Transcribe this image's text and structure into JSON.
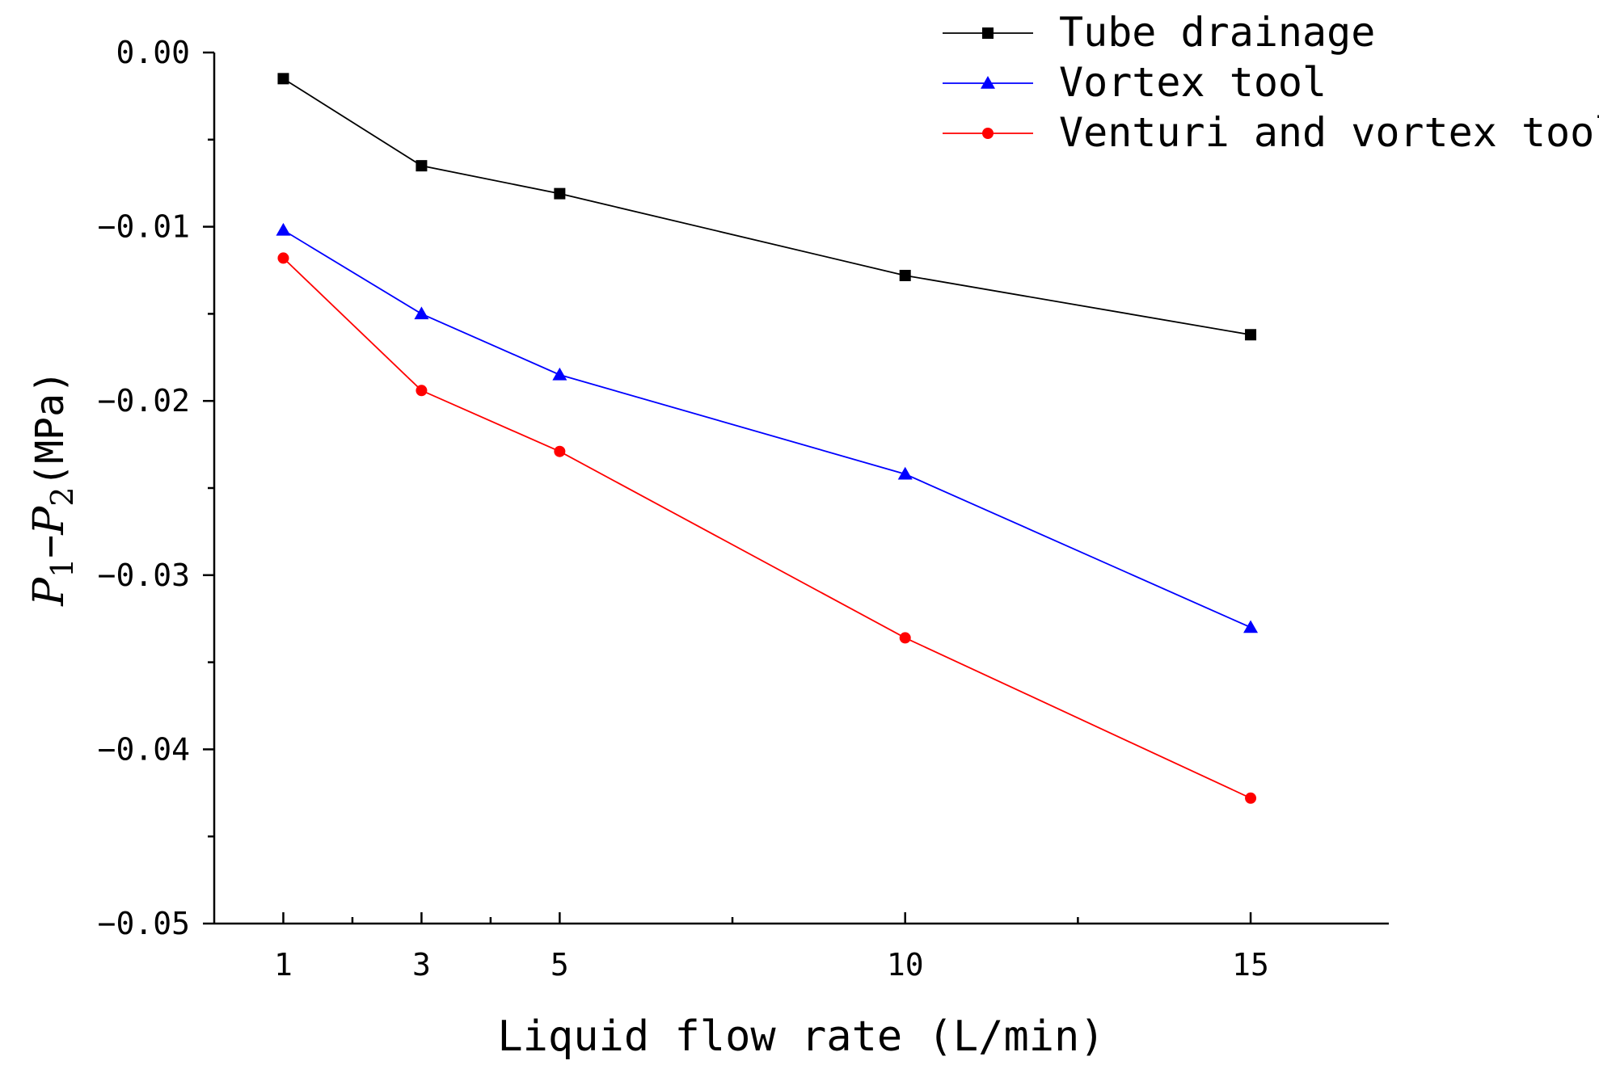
{
  "chart_data": {
    "type": "line",
    "title": "",
    "xlabel": "Liquid flow rate (L/min)",
    "ylabel": {
      "p1": "P",
      "sub1": "1",
      "minus": "−",
      "p2": "P",
      "sub2": "2",
      "unit": "(MPa)"
    },
    "xlim": [
      0,
      17
    ],
    "ylim": [
      -0.05,
      0.0
    ],
    "x_ticks": [
      1,
      3,
      5,
      10,
      15
    ],
    "x_tick_labels": [
      "1",
      "3",
      "5",
      "10",
      "15"
    ],
    "x_minor_ticks": [
      2,
      4,
      7.5,
      12.5
    ],
    "y_ticks": [
      0.0,
      -0.01,
      -0.02,
      -0.03,
      -0.04,
      -0.05
    ],
    "y_tick_labels": [
      "0.00",
      "−0.01",
      "−0.02",
      "−0.03",
      "−0.04",
      "−0.05"
    ],
    "y_minor_ticks": [
      -0.005,
      -0.015,
      -0.025,
      -0.035,
      -0.045
    ],
    "grid": false,
    "legend_position": "top-right",
    "x": [
      1,
      3,
      5,
      10,
      15
    ],
    "series": [
      {
        "name": "Tube drainage",
        "color": "#000000",
        "marker": "square",
        "values": [
          -0.0015,
          -0.0065,
          -0.0081,
          -0.0128,
          -0.0162
        ]
      },
      {
        "name": "Vortex tool",
        "color": "#0000ff",
        "marker": "triangle",
        "values": [
          -0.0102,
          -0.015,
          -0.0185,
          -0.0242,
          -0.033
        ]
      },
      {
        "name": "Venturi and vortex tool",
        "color": "#ff0000",
        "marker": "circle",
        "values": [
          -0.0118,
          -0.0194,
          -0.0229,
          -0.0336,
          -0.0428
        ]
      }
    ]
  }
}
